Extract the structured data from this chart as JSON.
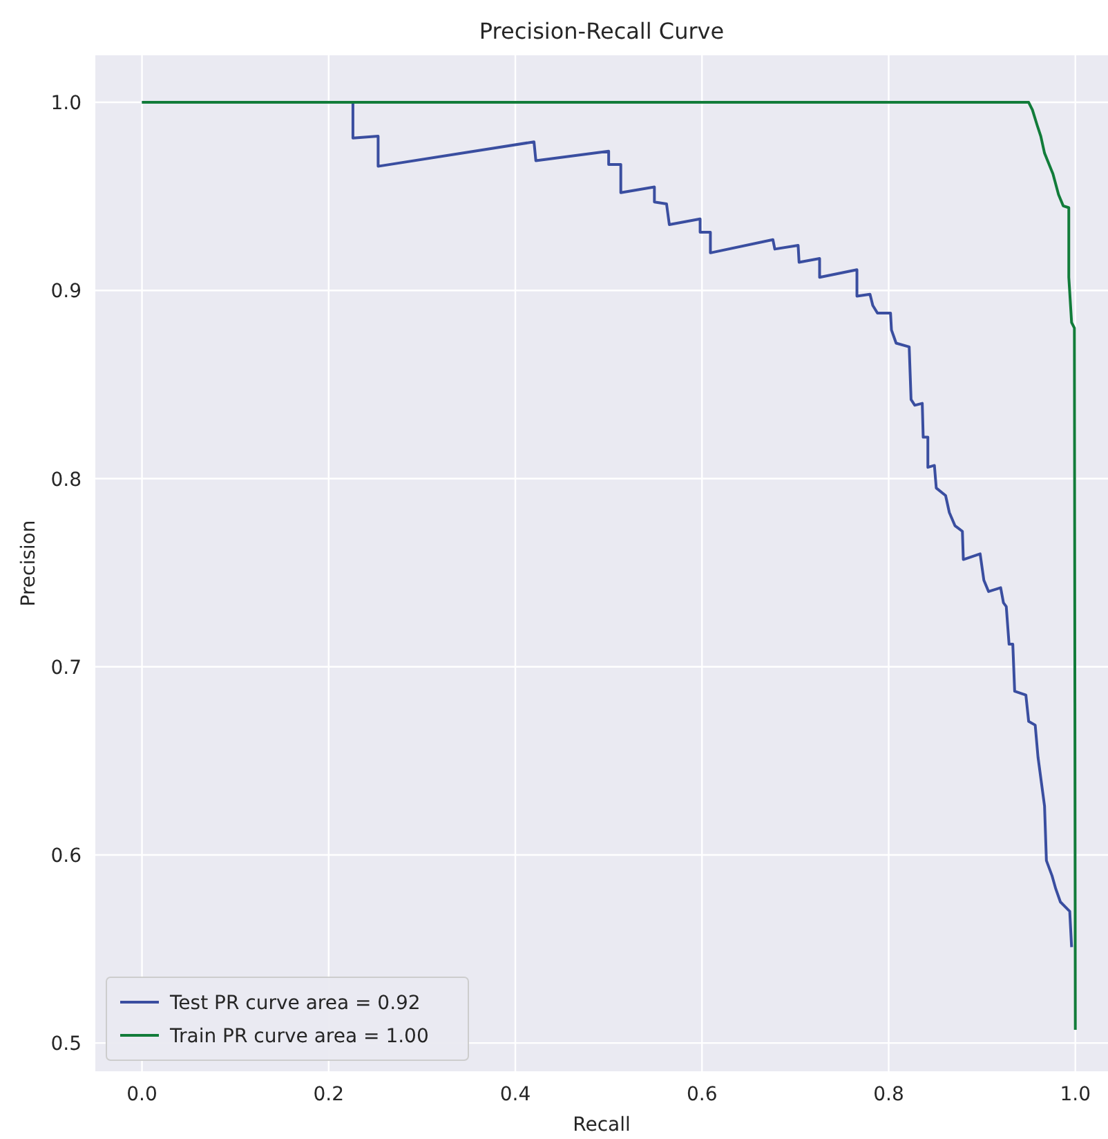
{
  "chart_data": {
    "type": "line",
    "title": "Precision-Recall Curve",
    "xlabel": "Recall",
    "ylabel": "Precision",
    "xlim": [
      -0.05,
      1.035
    ],
    "ylim": [
      0.485,
      1.025
    ],
    "xticks": [
      {
        "value": 0,
        "label": "0.0"
      },
      {
        "value": 0.2,
        "label": "0.2"
      },
      {
        "value": 0.4,
        "label": "0.4"
      },
      {
        "value": 0.6,
        "label": "0.6"
      },
      {
        "value": 0.8,
        "label": "0.8"
      },
      {
        "value": 1,
        "label": "1.0"
      }
    ],
    "yticks": [
      {
        "value": 0.5,
        "label": "0.5"
      },
      {
        "value": 0.6,
        "label": "0.6"
      },
      {
        "value": 0.7,
        "label": "0.7"
      },
      {
        "value": 0.8,
        "label": "0.8"
      },
      {
        "value": 0.9,
        "label": "0.9"
      },
      {
        "value": 1,
        "label": "1.0"
      }
    ],
    "grid": true,
    "legend": "bottom left",
    "marker": "none",
    "line_style": "solid",
    "series": [
      {
        "name": "Test PR curve area = 0.92",
        "color": "#3a4ea0",
        "x": [
          0,
          0.226,
          0.226,
          0.253,
          0.253,
          0.42,
          0.422,
          0.5,
          0.5,
          0.513,
          0.513,
          0.549,
          0.549,
          0.562,
          0.565,
          0.598,
          0.598,
          0.609,
          0.609,
          0.676,
          0.678,
          0.703,
          0.704,
          0.726,
          0.726,
          0.766,
          0.766,
          0.78,
          0.783,
          0.788,
          0.802,
          0.803,
          0.808,
          0.822,
          0.824,
          0.828,
          0.836,
          0.837,
          0.842,
          0.842,
          0.849,
          0.851,
          0.861,
          0.865,
          0.871,
          0.879,
          0.88,
          0.898,
          0.902,
          0.907,
          0.92,
          0.923,
          0.926,
          0.929,
          0.933,
          0.935,
          0.947,
          0.95,
          0.957,
          0.96,
          0.967,
          0.969,
          0.975,
          0.979,
          0.984,
          0.994,
          0.996
        ],
        "values": [
          1,
          1,
          0.981,
          0.982,
          0.966,
          0.979,
          0.969,
          0.974,
          0.967,
          0.967,
          0.952,
          0.955,
          0.947,
          0.946,
          0.935,
          0.938,
          0.931,
          0.931,
          0.92,
          0.927,
          0.922,
          0.924,
          0.915,
          0.917,
          0.907,
          0.911,
          0.897,
          0.898,
          0.892,
          0.888,
          0.888,
          0.879,
          0.872,
          0.87,
          0.842,
          0.839,
          0.84,
          0.822,
          0.822,
          0.806,
          0.807,
          0.795,
          0.791,
          0.782,
          0.775,
          0.772,
          0.757,
          0.76,
          0.746,
          0.74,
          0.742,
          0.734,
          0.732,
          0.712,
          0.712,
          0.687,
          0.685,
          0.671,
          0.669,
          0.652,
          0.626,
          0.597,
          0.589,
          0.582,
          0.575,
          0.57,
          0.551
        ]
      },
      {
        "name": "Train PR curve area = 1.00",
        "color": "#127c3a",
        "x": [
          0,
          0.95,
          0.954,
          0.959,
          0.963,
          0.967,
          0.976,
          0.982,
          0.987,
          0.993,
          0.993,
          0.996,
          0.999,
          1
        ],
        "values": [
          1,
          1,
          0.996,
          0.988,
          0.982,
          0.973,
          0.962,
          0.951,
          0.945,
          0.944,
          0.907,
          0.883,
          0.88,
          0.507
        ]
      }
    ]
  }
}
